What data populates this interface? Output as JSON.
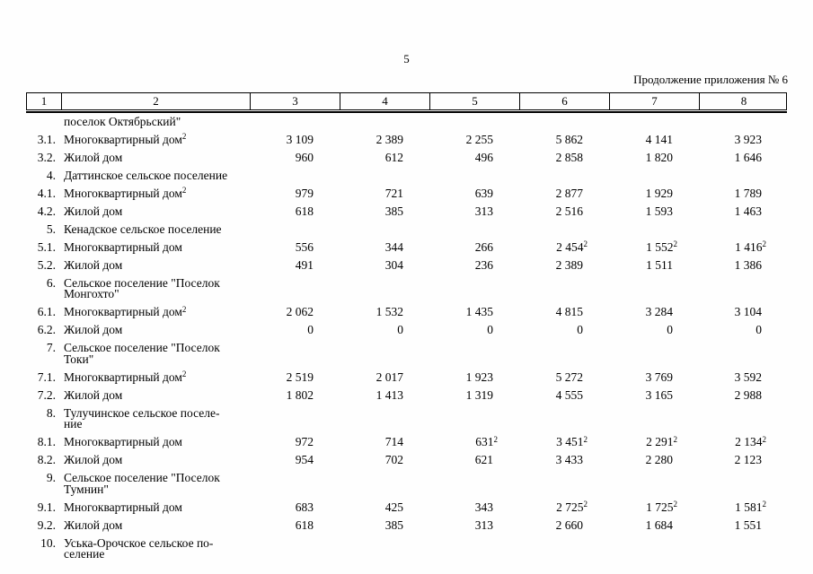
{
  "page": {
    "number": "5",
    "caption": "Продолжение приложения № 6"
  },
  "table": {
    "header": [
      "1",
      "2",
      "3",
      "4",
      "5",
      "6",
      "7",
      "8"
    ],
    "rows": [
      {
        "num": "",
        "label": "поселок Октябрьский\"",
        "values": [
          "",
          "",
          "",
          "",
          "",
          ""
        ]
      },
      {
        "num": "3.1.",
        "label": "Многоквартирный дом",
        "label_sup": "2",
        "values": [
          "3 109",
          "2 389",
          "2 255",
          "5 862",
          "4 141",
          "3 923"
        ]
      },
      {
        "num": "3.2.",
        "label": "Жилой дом",
        "values": [
          "960",
          "612",
          "496",
          "2 858",
          "1 820",
          "1 646"
        ]
      },
      {
        "num": "4.",
        "label": "Даттинское сельское поселение",
        "values": [
          "",
          "",
          "",
          "",
          "",
          ""
        ]
      },
      {
        "num": "4.1.",
        "label": "Многоквартирный дом",
        "label_sup": "2",
        "values": [
          "979",
          "721",
          "639",
          "2 877",
          "1 929",
          "1 789"
        ]
      },
      {
        "num": "4.2.",
        "label": "Жилой дом",
        "values": [
          "618",
          "385",
          "313",
          "2 516",
          "1 593",
          "1 463"
        ]
      },
      {
        "num": "5.",
        "label": "Кенадское сельское поселение",
        "values": [
          "",
          "",
          "",
          "",
          "",
          ""
        ]
      },
      {
        "num": "5.1.",
        "label": "Многоквартирный дом",
        "values": [
          "556",
          "344",
          "266",
          {
            "v": "2 454",
            "sup": "2"
          },
          {
            "v": "1 552",
            "sup": "2"
          },
          {
            "v": "1 416",
            "sup": "2"
          }
        ]
      },
      {
        "num": "5.2.",
        "label": "Жилой дом",
        "values": [
          "491",
          "304",
          "236",
          "2 389",
          "1 511",
          "1 386"
        ]
      },
      {
        "num": "6.",
        "label": "Сельское поселение \"Поселок\nМонгохто\"",
        "values": [
          "",
          "",
          "",
          "",
          "",
          ""
        ]
      },
      {
        "num": "6.1.",
        "label": "Многоквартирный дом",
        "label_sup": "2",
        "values": [
          "2 062",
          "1 532",
          "1 435",
          "4 815",
          "3 284",
          "3 104"
        ]
      },
      {
        "num": "6.2.",
        "label": "Жилой дом",
        "values": [
          "0",
          "0",
          "0",
          "0",
          "0",
          "0"
        ]
      },
      {
        "num": "7.",
        "label": "Сельское поселение \"Поселок\nТоки\"",
        "values": [
          "",
          "",
          "",
          "",
          "",
          ""
        ]
      },
      {
        "num": "7.1.",
        "label": "Многоквартирный дом",
        "label_sup": "2",
        "values": [
          "2 519",
          "2 017",
          "1 923",
          "5 272",
          "3 769",
          "3 592"
        ]
      },
      {
        "num": "7.2.",
        "label": "Жилой дом",
        "values": [
          "1 802",
          "1 413",
          "1 319",
          "4 555",
          "3 165",
          "2 988"
        ]
      },
      {
        "num": "8.",
        "label": "Тулучинское сельское поселе-\nние",
        "values": [
          "",
          "",
          "",
          "",
          "",
          ""
        ]
      },
      {
        "num": "8.1.",
        "label": "Многоквартирный дом",
        "values": [
          "972",
          "714",
          {
            "v": "631",
            "sup": "2"
          },
          {
            "v": "3 451",
            "sup": "2"
          },
          {
            "v": "2 291",
            "sup": "2"
          },
          {
            "v": "2 134",
            "sup": "2"
          }
        ]
      },
      {
        "num": "8.2.",
        "label": "Жилой дом",
        "values": [
          "954",
          "702",
          "621",
          "3 433",
          "2 280",
          "2 123"
        ]
      },
      {
        "num": "9.",
        "label": "Сельское поселение \"Поселок\nТумнин\"",
        "values": [
          "",
          "",
          "",
          "",
          "",
          ""
        ]
      },
      {
        "num": "9.1.",
        "label": "Многоквартирный дом",
        "values": [
          "683",
          "425",
          "343",
          {
            "v": "2 725",
            "sup": "2"
          },
          {
            "v": "1 725",
            "sup": "2"
          },
          {
            "v": "1 581",
            "sup": "2"
          }
        ]
      },
      {
        "num": "9.2.",
        "label": "Жилой дом",
        "values": [
          "618",
          "385",
          "313",
          "2 660",
          "1 684",
          "1 551"
        ]
      },
      {
        "num": "10.",
        "label": "Уська-Орочское сельское по-\nселение",
        "values": [
          "",
          "",
          "",
          "",
          "",
          ""
        ]
      }
    ]
  }
}
